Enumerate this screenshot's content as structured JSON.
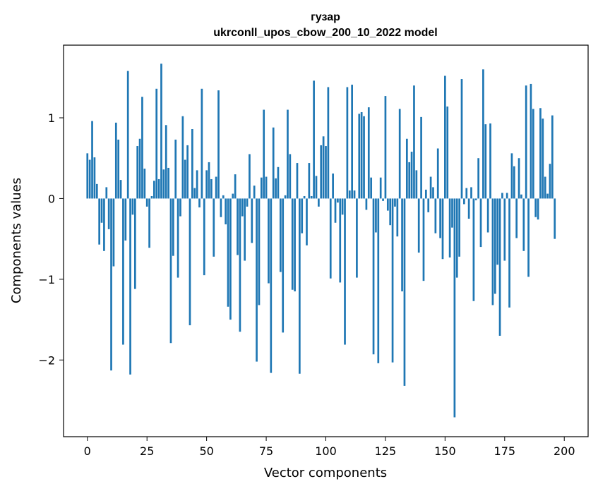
{
  "chart_data": {
    "type": "bar",
    "title_line1": "гузар",
    "title_line2": "ukrconll_upos_cbow_200_10_2022 model",
    "xlabel": "Vector components",
    "ylabel": "Components values",
    "xlim": [
      -10,
      210
    ],
    "ylim": [
      -2.95,
      1.9
    ],
    "xticks": [
      0,
      25,
      50,
      75,
      100,
      125,
      150,
      175,
      200
    ],
    "yticks": [
      1,
      0,
      -1,
      -2
    ],
    "ytick_labels": [
      "1",
      "0",
      "−1",
      "−2"
    ],
    "bar_color": "#1f77b4",
    "grid": false,
    "values": [
      0.56,
      0.48,
      0.96,
      0.51,
      0.18,
      -0.57,
      -0.3,
      -0.65,
      0.14,
      -0.38,
      -2.13,
      -0.84,
      0.94,
      0.73,
      0.23,
      -1.81,
      -0.52,
      1.58,
      -2.18,
      -0.2,
      -1.12,
      0.65,
      0.74,
      1.26,
      0.37,
      -0.1,
      -0.61,
      0.03,
      0.22,
      1.36,
      0.24,
      1.67,
      0.36,
      0.91,
      0.38,
      -1.79,
      -0.71,
      0.73,
      -0.98,
      -0.22,
      1.02,
      0.48,
      0.66,
      -1.57,
      0.86,
      0.13,
      0.35,
      -0.11,
      1.36,
      -0.95,
      0.35,
      0.45,
      0.24,
      -0.72,
      0.27,
      1.34,
      -0.23,
      0.04,
      -0.32,
      -1.34,
      -1.5,
      0.06,
      0.3,
      -0.7,
      -1.65,
      -0.22,
      -0.77,
      -0.1,
      0.55,
      -0.55,
      0.16,
      -2.02,
      -1.32,
      0.26,
      1.1,
      0.27,
      -1.05,
      -2.16,
      0.88,
      0.25,
      0.39,
      -0.91,
      -1.66,
      0.04,
      1.1,
      0.55,
      -1.13,
      -1.15,
      0.44,
      -2.17,
      -0.43,
      0.03,
      -0.58,
      0.44,
      0.03,
      1.46,
      0.28,
      -0.1,
      0.66,
      0.77,
      0.65,
      1.38,
      -0.99,
      0.31,
      -0.3,
      -0.05,
      -1.04,
      -0.2,
      -1.81,
      1.38,
      0.1,
      1.41,
      0.1,
      -0.98,
      1.05,
      1.07,
      1.02,
      -0.14,
      1.13,
      0.26,
      -1.93,
      -0.42,
      -2.04,
      0.26,
      -0.03,
      1.27,
      -0.15,
      -0.33,
      -2.03,
      -0.1,
      -0.47,
      1.11,
      -1.15,
      -2.32,
      0.74,
      0.45,
      0.58,
      1.4,
      0.35,
      -0.67,
      1.01,
      -1.02,
      0.11,
      -0.17,
      0.27,
      0.14,
      -0.43,
      0.62,
      -0.49,
      -0.75,
      1.52,
      1.14,
      -0.73,
      -0.36,
      -2.71,
      -0.98,
      -0.72,
      1.48,
      -0.07,
      0.13,
      -0.25,
      0.14,
      -1.27,
      -0.02,
      0.5,
      -0.6,
      1.6,
      0.92,
      -0.42,
      0.93,
      -1.32,
      -1.18,
      -0.82,
      -1.7,
      0.07,
      -0.77,
      0.07,
      -1.35,
      0.56,
      0.4,
      -0.49,
      0.5,
      0.05,
      -0.65,
      1.4,
      -0.97,
      1.42,
      1.11,
      -0.23,
      -0.26,
      1.12,
      0.99,
      0.27,
      0.06,
      0.43,
      1.03,
      -0.5
    ]
  }
}
